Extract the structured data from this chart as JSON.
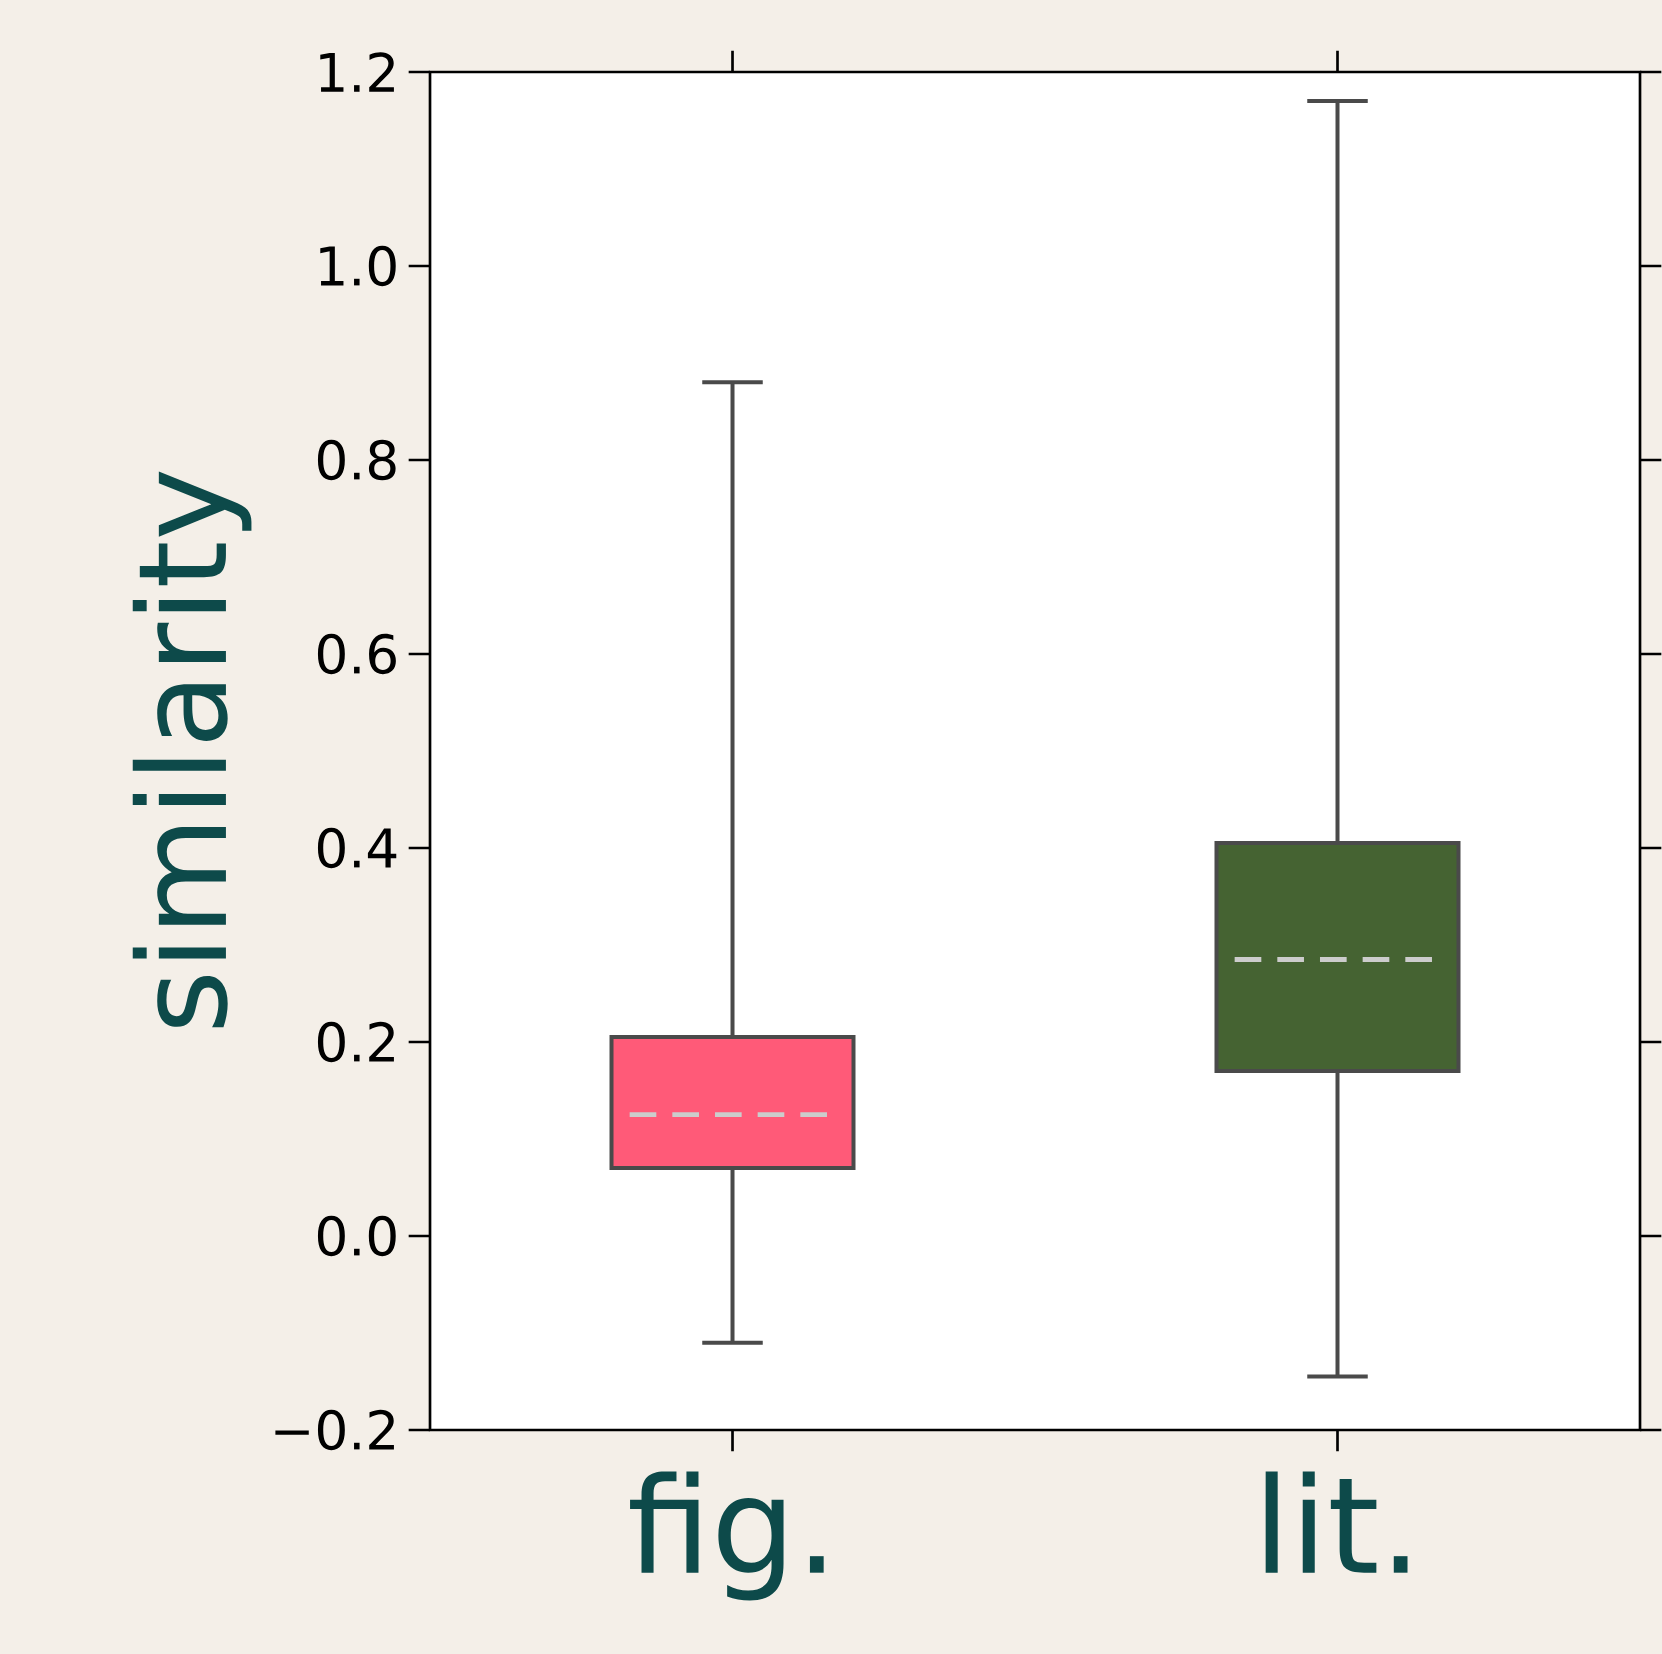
{
  "chart_data": {
    "type": "box",
    "ylabel": "similarity",
    "categories": [
      "fig.",
      "lit."
    ],
    "series": [
      {
        "color": "#ff5a78",
        "boxes": [
          {
            "low": -0.11,
            "q1": 0.07,
            "median": 0.125,
            "q3": 0.205,
            "high": 0.88
          },
          null
        ]
      },
      {
        "color": "#456332",
        "boxes": [
          null,
          {
            "low": -0.145,
            "q1": 0.17,
            "median": 0.285,
            "q3": 0.405,
            "high": 1.17
          }
        ]
      }
    ],
    "ylim": [
      -0.2,
      1.2
    ],
    "yticks": [
      {
        "value": -0.2,
        "label": "−0.2"
      },
      {
        "value": 0,
        "label": "0.0"
      },
      {
        "value": 0.2,
        "label": "0.2"
      },
      {
        "value": 0.4,
        "label": "0.4"
      },
      {
        "value": 0.6,
        "label": "0.6"
      },
      {
        "value": 0.8,
        "label": "0.8"
      },
      {
        "value": 1.0,
        "label": "1.0"
      },
      {
        "value": 1.2,
        "label": "1.2"
      }
    ],
    "grid": false
  }
}
